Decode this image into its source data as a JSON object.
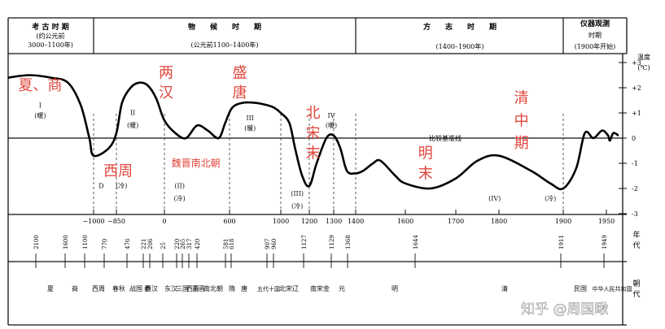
{
  "chart_data": {
    "type": "line",
    "headers": [
      {
        "title": "考 古 时 期",
        "sub": "(约公元前",
        "sub2": "3000–1100年)"
      },
      {
        "title": "物　　候　　时　　期",
        "sub": "(公元前1100–1400年)"
      },
      {
        "title": "方　　志　　时　　期",
        "sub": "(1400–1900年)"
      },
      {
        "title": "仪器观测",
        "sub": "时期",
        "sub2": "(1900年开始)"
      }
    ],
    "ylabel_lines": [
      "温度",
      "(℃)"
    ],
    "y_ticks": [
      {
        "v": 3,
        "label": "+3"
      },
      {
        "v": 2,
        "label": "+2"
      },
      {
        "v": 1,
        "label": "+1"
      },
      {
        "v": 0,
        "label": "0"
      },
      {
        "v": -1,
        "label": "-1"
      },
      {
        "v": -2,
        "label": "-2"
      },
      {
        "v": -3,
        "label": "-3"
      }
    ],
    "ylim": [
      -3,
      3
    ],
    "x_ticks": [
      "−1000",
      "−850",
      "0",
      "600",
      "1000",
      "1200",
      "1300",
      "1400",
      "1600",
      "1700",
      "1800",
      "1900",
      "1950"
    ],
    "baseline_label": "比较基准线",
    "series": [
      {
        "values": [
          [
            -3000,
            2.4
          ],
          [
            -2500,
            2.5
          ],
          [
            -2000,
            2.4
          ],
          [
            -1600,
            2.2
          ],
          [
            -1300,
            1.3
          ],
          [
            -1100,
            0.0
          ],
          [
            -1000,
            -0.7
          ],
          [
            -900,
            -0.4
          ],
          [
            -850,
            0.2
          ],
          [
            -750,
            1.4
          ],
          [
            -600,
            2.0
          ],
          [
            -450,
            2.2
          ],
          [
            -300,
            2.1
          ],
          [
            -150,
            1.6
          ],
          [
            0,
            0.7
          ],
          [
            100,
            0.2
          ],
          [
            200,
            0.0
          ],
          [
            300,
            0.5
          ],
          [
            400,
            0.3
          ],
          [
            500,
            0.0
          ],
          [
            560,
            0.6
          ],
          [
            620,
            1.2
          ],
          [
            700,
            1.4
          ],
          [
            800,
            1.4
          ],
          [
            900,
            1.3
          ],
          [
            950,
            1.2
          ],
          [
            1000,
            1.0
          ],
          [
            1060,
            0.6
          ],
          [
            1100,
            -0.4
          ],
          [
            1150,
            -1.5
          ],
          [
            1200,
            -1.9
          ],
          [
            1230,
            -1.0
          ],
          [
            1270,
            0.0
          ],
          [
            1300,
            0.1
          ],
          [
            1330,
            -0.4
          ],
          [
            1360,
            -1.3
          ],
          [
            1400,
            -1.4
          ],
          [
            1430,
            -1.3
          ],
          [
            1470,
            -1.0
          ],
          [
            1500,
            -0.9
          ],
          [
            1560,
            -1.5
          ],
          [
            1600,
            -1.8
          ],
          [
            1650,
            -2.0
          ],
          [
            1700,
            -1.6
          ],
          [
            1750,
            -0.9
          ],
          [
            1800,
            -0.7
          ],
          [
            1850,
            -1.3
          ],
          [
            1880,
            -1.8
          ],
          [
            1900,
            -2.0
          ],
          [
            1915,
            -1.2
          ],
          [
            1925,
            0.2
          ],
          [
            1935,
            0.0
          ],
          [
            1945,
            0.3
          ],
          [
            1955,
            0.1
          ],
          [
            1960,
            -0.1
          ],
          [
            1970,
            0.2
          ],
          [
            1985,
            0.1
          ]
        ]
      }
    ],
    "annotations": [
      {
        "text": "夏、商",
        "x": -2250,
        "y": 2.1,
        "color": "red",
        "big": true
      },
      {
        "text": "I",
        "x": -2250,
        "y": 1.3
      },
      {
        "text": "(暖)",
        "x": -2250,
        "y": 0.9
      },
      {
        "text": "两",
        "x": 15,
        "y": 2.6,
        "color": "red",
        "big": true
      },
      {
        "text": "汉",
        "x": 15,
        "y": 1.8,
        "color": "red",
        "big": true
      },
      {
        "text": "II",
        "x": -560,
        "y": 1.0
      },
      {
        "text": "(暖)",
        "x": -560,
        "y": 0.5
      },
      {
        "text": "盛",
        "x": 680,
        "y": 2.6,
        "color": "red",
        "big": true
      },
      {
        "text": "唐",
        "x": 680,
        "y": 1.8,
        "color": "red",
        "big": true
      },
      {
        "text": "III",
        "x": 760,
        "y": 0.8
      },
      {
        "text": "(暖)",
        "x": 760,
        "y": 0.4
      },
      {
        "text": "北",
        "x": 1215,
        "y": 1.0,
        "color": "red",
        "big": true
      },
      {
        "text": "宋",
        "x": 1215,
        "y": 0.2,
        "color": "red",
        "big": true
      },
      {
        "text": "末",
        "x": 1215,
        "y": -0.6,
        "color": "red",
        "big": true
      },
      {
        "text": "IV",
        "x": 1290,
        "y": 0.9
      },
      {
        "text": "(暖)",
        "x": 1290,
        "y": 0.5
      },
      {
        "text": "清",
        "x": 1835,
        "y": 1.6,
        "color": "red",
        "big": true
      },
      {
        "text": "中",
        "x": 1835,
        "y": 0.7,
        "color": "red",
        "big": true
      },
      {
        "text": "期",
        "x": 1835,
        "y": -0.2,
        "color": "red",
        "big": true
      },
      {
        "text": "明",
        "x": 1640,
        "y": -0.6,
        "color": "red",
        "big": true
      },
      {
        "text": "末",
        "x": 1640,
        "y": -1.4,
        "color": "red",
        "big": true
      },
      {
        "text": "西周",
        "x": -820,
        "y": -1.3,
        "color": "red",
        "big": true
      },
      {
        "text": "D",
        "x": -950,
        "y": -1.9
      },
      {
        "text": "(冷)",
        "x": -760,
        "y": -1.9
      },
      {
        "text": "魏晋南北朝",
        "x": 290,
        "y": -1.0,
        "color": "red"
      },
      {
        "text": "(II)",
        "x": 140,
        "y": -1.9
      },
      {
        "text": "(冷)",
        "x": 140,
        "y": -2.4
      },
      {
        "text": "(III)",
        "x": 1115,
        "y": -2.2
      },
      {
        "text": "(冷)",
        "x": 1115,
        "y": -2.7
      },
      {
        "text": "(IV)",
        "x": 1790,
        "y": -2.4
      },
      {
        "text": "(冷)",
        "x": 1880,
        "y": -2.4
      }
    ],
    "dynasty_years": [
      "2100",
      "1600",
      "1100",
      "770",
      "476",
      "221",
      "206",
      "25",
      "220",
      "265",
      "317",
      "420",
      "581",
      "618",
      "907",
      "960",
      "1127",
      "1129",
      "1368",
      "1644",
      "1911",
      "1949"
    ],
    "year_axis_label": [
      "年",
      "代"
    ],
    "dynasties": [
      "夏",
      "商",
      "西周",
      "春秋",
      "战国",
      "秦",
      "西汉",
      "东汉",
      "三国",
      "西晋",
      "东晋",
      "南北朝",
      "隋",
      "唐",
      "五代十国",
      "北宋辽",
      "南宋金",
      "元",
      "明",
      "清",
      "民国",
      "中华人民共和国"
    ],
    "dynasty_axis_label": [
      "朝",
      "代"
    ],
    "watermark": "知乎 @周国瞅"
  }
}
